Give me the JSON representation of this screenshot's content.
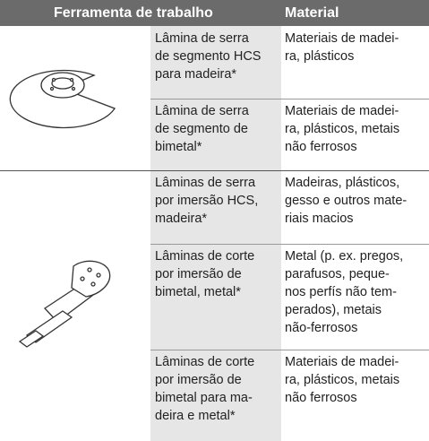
{
  "header": {
    "tool": "Ferramenta de trabalho",
    "material": "Material"
  },
  "rows": [
    {
      "tool": [
        "Lâmina de serra",
        "de segmento HCS",
        "para madeira*"
      ],
      "material": [
        "Materiais de madei-",
        "ra, plásticos"
      ]
    },
    {
      "tool": [
        "Lâmina de serra",
        "de segmento de",
        "bimetal*"
      ],
      "material": [
        "Materiais de madei-",
        "ra, plásticos, metais",
        "não ferrosos"
      ]
    },
    {
      "tool": [
        "Lâminas de serra",
        "por imersão HCS,",
        "madeira*"
      ],
      "material": [
        "Madeiras, plásticos,",
        "gesso e outros mate-",
        "riais macios"
      ]
    },
    {
      "tool": [
        "Lâminas de corte",
        "por imersão de",
        "bimetal, metal*"
      ],
      "material": [
        "Metal (p. ex. pregos,",
        "parafusos, peque-",
        "nos perfís não tem-",
        "perados), metais",
        "não-ferrosos"
      ]
    },
    {
      "tool": [
        "Lâminas de corte",
        "por imersão de",
        "bimetal para ma-",
        "deira e metal*"
      ],
      "material": [
        "Materiais de madei-",
        "ra, plásticos, metais",
        "não ferrosos"
      ]
    }
  ]
}
